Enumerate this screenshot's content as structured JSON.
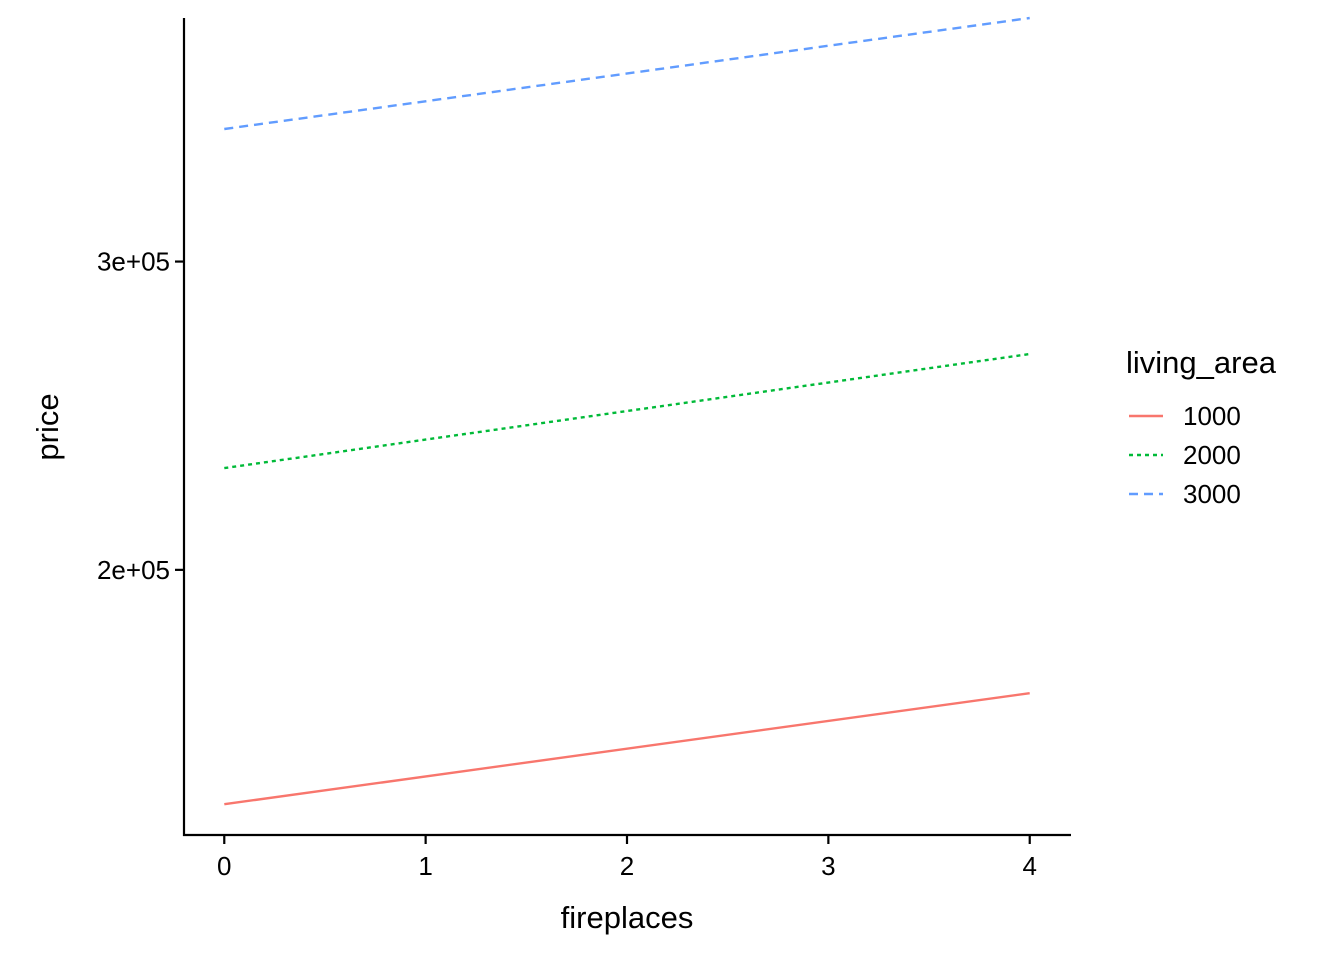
{
  "chart_data": {
    "type": "line",
    "xlabel": "fireplaces",
    "ylabel": "price",
    "xlim": [
      -0.2,
      4.2
    ],
    "ylim": [
      114000,
      379000
    ],
    "x_ticks": [
      0,
      1,
      2,
      3,
      4
    ],
    "y_ticks": [
      {
        "value": 200000,
        "label": "2e+05"
      },
      {
        "value": 300000,
        "label": "3e+05"
      }
    ],
    "grid": false,
    "legend": {
      "title": "living_area",
      "position": "right"
    },
    "series": [
      {
        "name": "1000",
        "color": "#F8766D",
        "dash": "solid",
        "x": [
          0,
          4
        ],
        "y": [
          124000,
          160000
        ]
      },
      {
        "name": "2000",
        "color": "#00BA38",
        "dash": "dotted",
        "x": [
          0,
          4
        ],
        "y": [
          233000,
          270000
        ]
      },
      {
        "name": "3000",
        "color": "#619CFF",
        "dash": "dashed",
        "x": [
          0,
          4
        ],
        "y": [
          343000,
          379000
        ]
      }
    ]
  }
}
